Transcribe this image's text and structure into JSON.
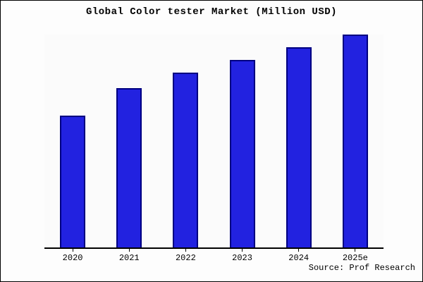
{
  "chart_data": {
    "type": "bar",
    "title": "Global Color tester Market (Million USD)",
    "categories": [
      "2020",
      "2021",
      "2022",
      "2023",
      "2024",
      "2025e"
    ],
    "values": [
      62,
      75,
      82,
      88,
      94,
      100
    ],
    "xlabel": "",
    "ylabel": "",
    "ylim": [
      0,
      100
    ],
    "grid": false,
    "legend": false,
    "bar_fill_color": "#2222e0",
    "bar_edge_color": "#000080",
    "axis_color": "#000000"
  },
  "source_text": "Source: Prof Research"
}
